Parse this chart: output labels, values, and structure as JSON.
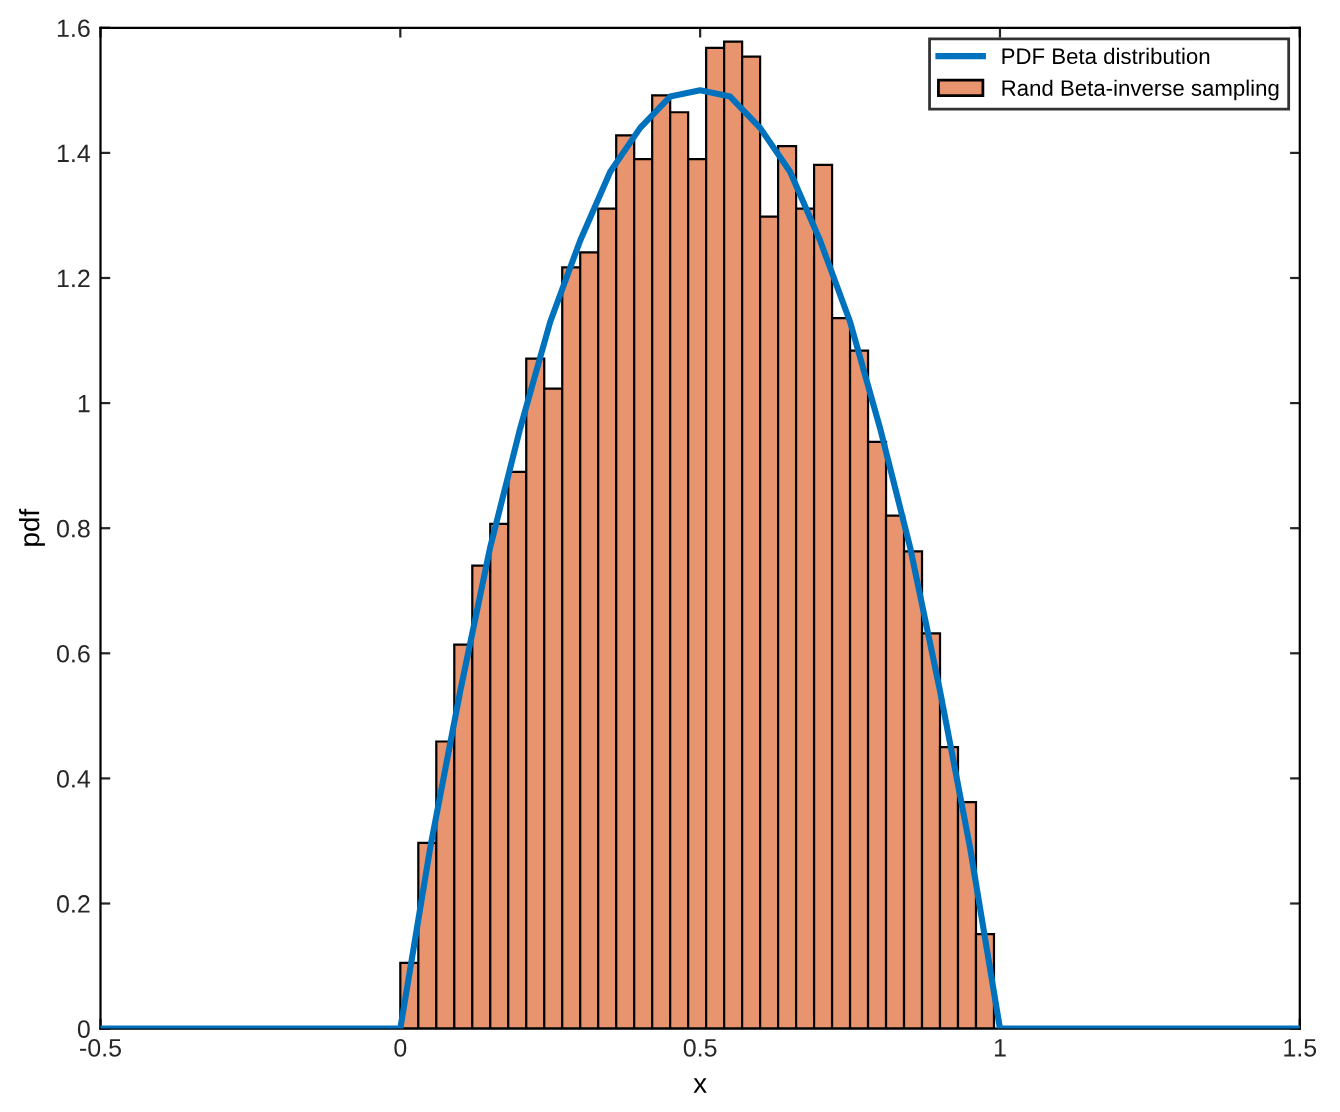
{
  "chart_data": {
    "type": "histogram",
    "xlabel": "x",
    "ylabel": "pdf",
    "xlim": [
      -0.5,
      1.5
    ],
    "xticks": [
      -0.5,
      0,
      0.5,
      1,
      1.5
    ],
    "ylim": [
      0,
      1.6
    ],
    "yticks": [
      0,
      0.2,
      0.4,
      0.6,
      0.8,
      1,
      1.2,
      1.4,
      1.6
    ],
    "grid": false,
    "legend": "top right",
    "series": [
      {
        "name": "Rand Beta-inverse sampling",
        "color": "#e8956f",
        "bins": [
          0,
          0.03,
          0.06,
          0.09,
          0.12,
          0.15,
          0.18,
          0.21,
          0.24,
          0.27,
          0.3,
          0.33,
          0.36,
          0.39,
          0.42,
          0.45,
          0.48,
          0.51,
          0.54,
          0.57,
          0.6,
          0.63,
          0.66,
          0.69,
          0.72,
          0.75,
          0.78,
          0.81,
          0.84,
          0.87,
          0.9,
          0.93,
          0.96,
          0.99
        ],
        "values": [
          0.105,
          0.297,
          0.459,
          0.614,
          0.74,
          0.807,
          0.89,
          1.071,
          1.023,
          1.217,
          1.241,
          1.311,
          1.428,
          1.39,
          1.492,
          1.465,
          1.39,
          1.568,
          1.578,
          1.554,
          1.298,
          1.411,
          1.311,
          1.381,
          1.136,
          1.084,
          0.938,
          0.82,
          0.763,
          0.632,
          0.45,
          0.362,
          0.151
        ]
      },
      {
        "type": "line",
        "name": "PDF Beta distribution",
        "color": "#0072bd",
        "x": [
          -0.5,
          0,
          0.05,
          0.1,
          0.15,
          0.2,
          0.25,
          0.3,
          0.35,
          0.4,
          0.45,
          0.5,
          0.55,
          0.6,
          0.65,
          0.7,
          0.75,
          0.8,
          0.85,
          0.9,
          0.95,
          1,
          1.5
        ],
        "values": [
          0,
          0,
          0.29,
          0.54,
          0.77,
          0.96,
          1.13,
          1.26,
          1.37,
          1.44,
          1.49,
          1.5,
          1.49,
          1.44,
          1.37,
          1.26,
          1.13,
          0.96,
          0.77,
          0.54,
          0.29,
          0,
          0
        ]
      }
    ]
  }
}
